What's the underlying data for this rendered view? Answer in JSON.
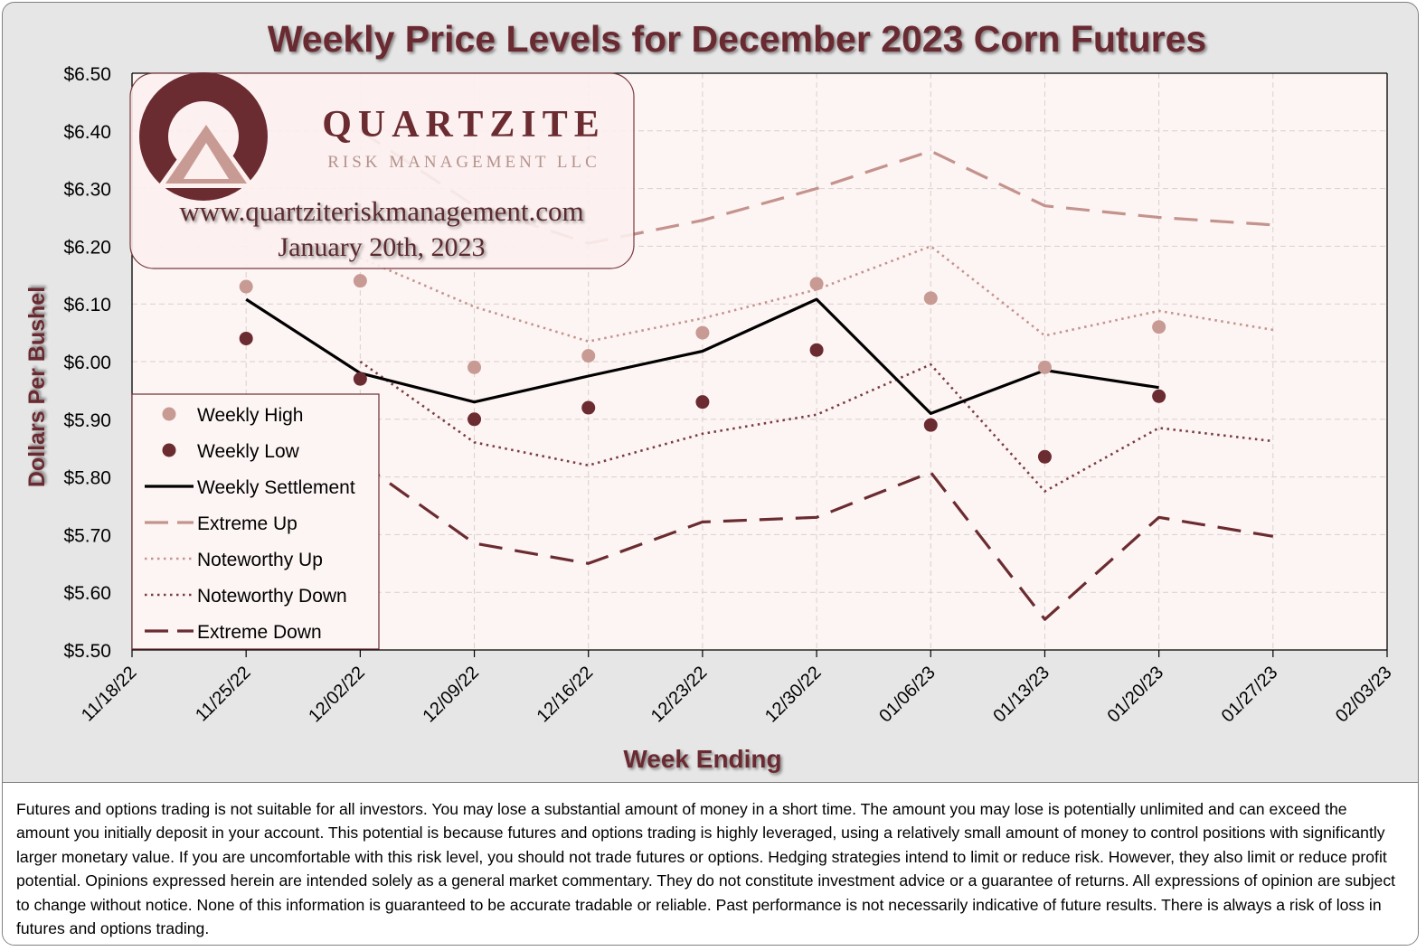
{
  "chart_data": {
    "type": "line",
    "title": "Weekly Price Levels for December 2023 Corn Futures",
    "xlabel": "Week Ending",
    "ylabel": "Dollars Per Bushel",
    "ylim": [
      5.5,
      6.5
    ],
    "y_ticks": [
      "$5.50",
      "$5.60",
      "$5.70",
      "$5.80",
      "$5.90",
      "$6.00",
      "$6.10",
      "$6.20",
      "$6.30",
      "$6.40",
      "$6.50"
    ],
    "x_ticks": [
      "11/18/22",
      "11/25/22",
      "12/02/22",
      "12/09/22",
      "12/16/22",
      "12/23/22",
      "12/30/22",
      "01/06/23",
      "01/13/23",
      "01/20/23",
      "01/27/23",
      "02/03/23"
    ],
    "grid": true,
    "legend_position": "left",
    "colors": {
      "weekly_high": "#c89a94",
      "weekly_low": "#6b2c31",
      "weekly_settlement": "#000000",
      "extreme_up": "#c4938d",
      "noteworthy_up": "#c4938d",
      "noteworthy_down": "#7a3c40",
      "extreme_down": "#6b2c31",
      "title": "#6b2c31",
      "plot_background": "#fdf5f3"
    },
    "series": [
      {
        "name": "Weekly High",
        "style": "marker-light",
        "x": [
          "11/25/22",
          "12/02/22",
          "12/09/22",
          "12/16/22",
          "12/23/22",
          "12/30/22",
          "01/06/23",
          "01/13/23",
          "01/20/23"
        ],
        "values": [
          6.13,
          6.14,
          5.99,
          6.01,
          6.05,
          6.135,
          6.11,
          5.99,
          6.06
        ]
      },
      {
        "name": "Weekly Low",
        "style": "marker-dark",
        "x": [
          "11/25/22",
          "12/02/22",
          "12/09/22",
          "12/16/22",
          "12/23/22",
          "12/30/22",
          "01/06/23",
          "01/13/23",
          "01/20/23"
        ],
        "values": [
          6.04,
          5.97,
          5.9,
          5.92,
          5.93,
          6.02,
          5.89,
          5.835,
          5.94
        ]
      },
      {
        "name": "Weekly Settlement",
        "style": "solid",
        "x": [
          "11/25/22",
          "12/02/22",
          "12/09/22",
          "12/16/22",
          "12/23/22",
          "12/30/22",
          "01/06/23",
          "01/13/23",
          "01/20/23"
        ],
        "values": [
          6.108,
          5.98,
          5.93,
          5.975,
          6.018,
          6.108,
          5.91,
          5.985,
          5.955
        ]
      },
      {
        "name": "Extreme Up",
        "style": "long-dash-light",
        "x": [
          "12/02/22",
          "12/09/22",
          "12/16/22",
          "12/23/22",
          "12/30/22",
          "01/06/23",
          "01/13/23",
          "01/20/23",
          "01/27/23"
        ],
        "values": [
          6.4,
          6.27,
          6.205,
          6.245,
          6.3,
          6.365,
          6.27,
          6.25,
          6.237
        ]
      },
      {
        "name": "Noteworthy Up",
        "style": "dotted-light",
        "x": [
          "12/02/22",
          "12/09/22",
          "12/16/22",
          "12/23/22",
          "12/30/22",
          "01/06/23",
          "01/13/23",
          "01/20/23",
          "01/27/23"
        ],
        "values": [
          6.18,
          6.095,
          6.035,
          6.075,
          6.125,
          6.2,
          6.045,
          6.088,
          6.055
        ]
      },
      {
        "name": "Noteworthy Down",
        "style": "dotted-dark",
        "x": [
          "12/02/22",
          "12/09/22",
          "12/16/22",
          "12/23/22",
          "12/30/22",
          "01/06/23",
          "01/13/23",
          "01/20/23",
          "01/27/23"
        ],
        "values": [
          6.0,
          5.86,
          5.82,
          5.875,
          5.908,
          5.995,
          5.775,
          5.885,
          5.862
        ]
      },
      {
        "name": "Extreme Down",
        "style": "long-dash-dark",
        "x": [
          "12/02/22",
          "12/09/22",
          "12/16/22",
          "12/23/22",
          "12/30/22",
          "01/06/23",
          "01/13/23",
          "01/20/23",
          "01/27/23"
        ],
        "values": [
          5.825,
          5.685,
          5.65,
          5.722,
          5.73,
          5.808,
          5.553,
          5.73,
          5.697
        ]
      }
    ]
  },
  "logo": {
    "name": "QUARTZITE",
    "subtitle": "RISK MANAGEMENT LLC",
    "website": "www.quartziteriskmanagement.com",
    "date": "January 20th, 2023"
  },
  "disclaimer": "Futures and options trading is not suitable for all investors. You may lose a substantial amount of money in a short time. The amount you may lose is potentially unlimited and can exceed the amount you initially deposit in your account. This potential is because futures and options trading is highly leveraged, using a relatively small amount of money to control positions with significantly larger monetary value. If you are uncomfortable with this risk level, you should not trade futures or options. Hedging strategies intend to limit or reduce risk. However, they also limit or reduce profit potential. Opinions expressed herein are intended solely as a general market commentary. They do not constitute investment advice or a guarantee of returns. All expressions of opinion are subject to change without notice. None of this information is guaranteed to be accurate tradable or reliable. Past performance is not necessarily indicative of future results. There is always a risk of loss in futures and options trading."
}
